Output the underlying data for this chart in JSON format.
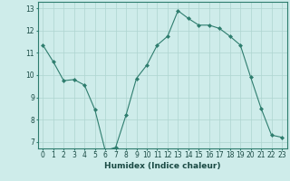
{
  "x": [
    0,
    1,
    2,
    3,
    4,
    5,
    6,
    7,
    8,
    9,
    10,
    11,
    12,
    13,
    14,
    15,
    16,
    17,
    18,
    19,
    20,
    21,
    22,
    23
  ],
  "y": [
    11.35,
    10.6,
    9.75,
    9.8,
    9.55,
    8.45,
    6.6,
    6.75,
    8.2,
    9.85,
    10.45,
    11.35,
    11.75,
    12.9,
    12.55,
    12.25,
    12.25,
    12.1,
    11.75,
    11.35,
    9.9,
    8.5,
    7.3,
    7.2
  ],
  "xlabel": "Humidex (Indice chaleur)",
  "ylim": [
    6.7,
    13.3
  ],
  "xlim": [
    -0.5,
    23.5
  ],
  "yticks": [
    7,
    8,
    9,
    10,
    11,
    12,
    13
  ],
  "xticks": [
    0,
    1,
    2,
    3,
    4,
    5,
    6,
    7,
    8,
    9,
    10,
    11,
    12,
    13,
    14,
    15,
    16,
    17,
    18,
    19,
    20,
    21,
    22,
    23
  ],
  "line_color": "#2e7d6e",
  "marker_color": "#2e7d6e",
  "bg_color": "#ceecea",
  "grid_color": "#aed4d0",
  "label_fontsize": 6.5,
  "tick_fontsize": 5.5
}
